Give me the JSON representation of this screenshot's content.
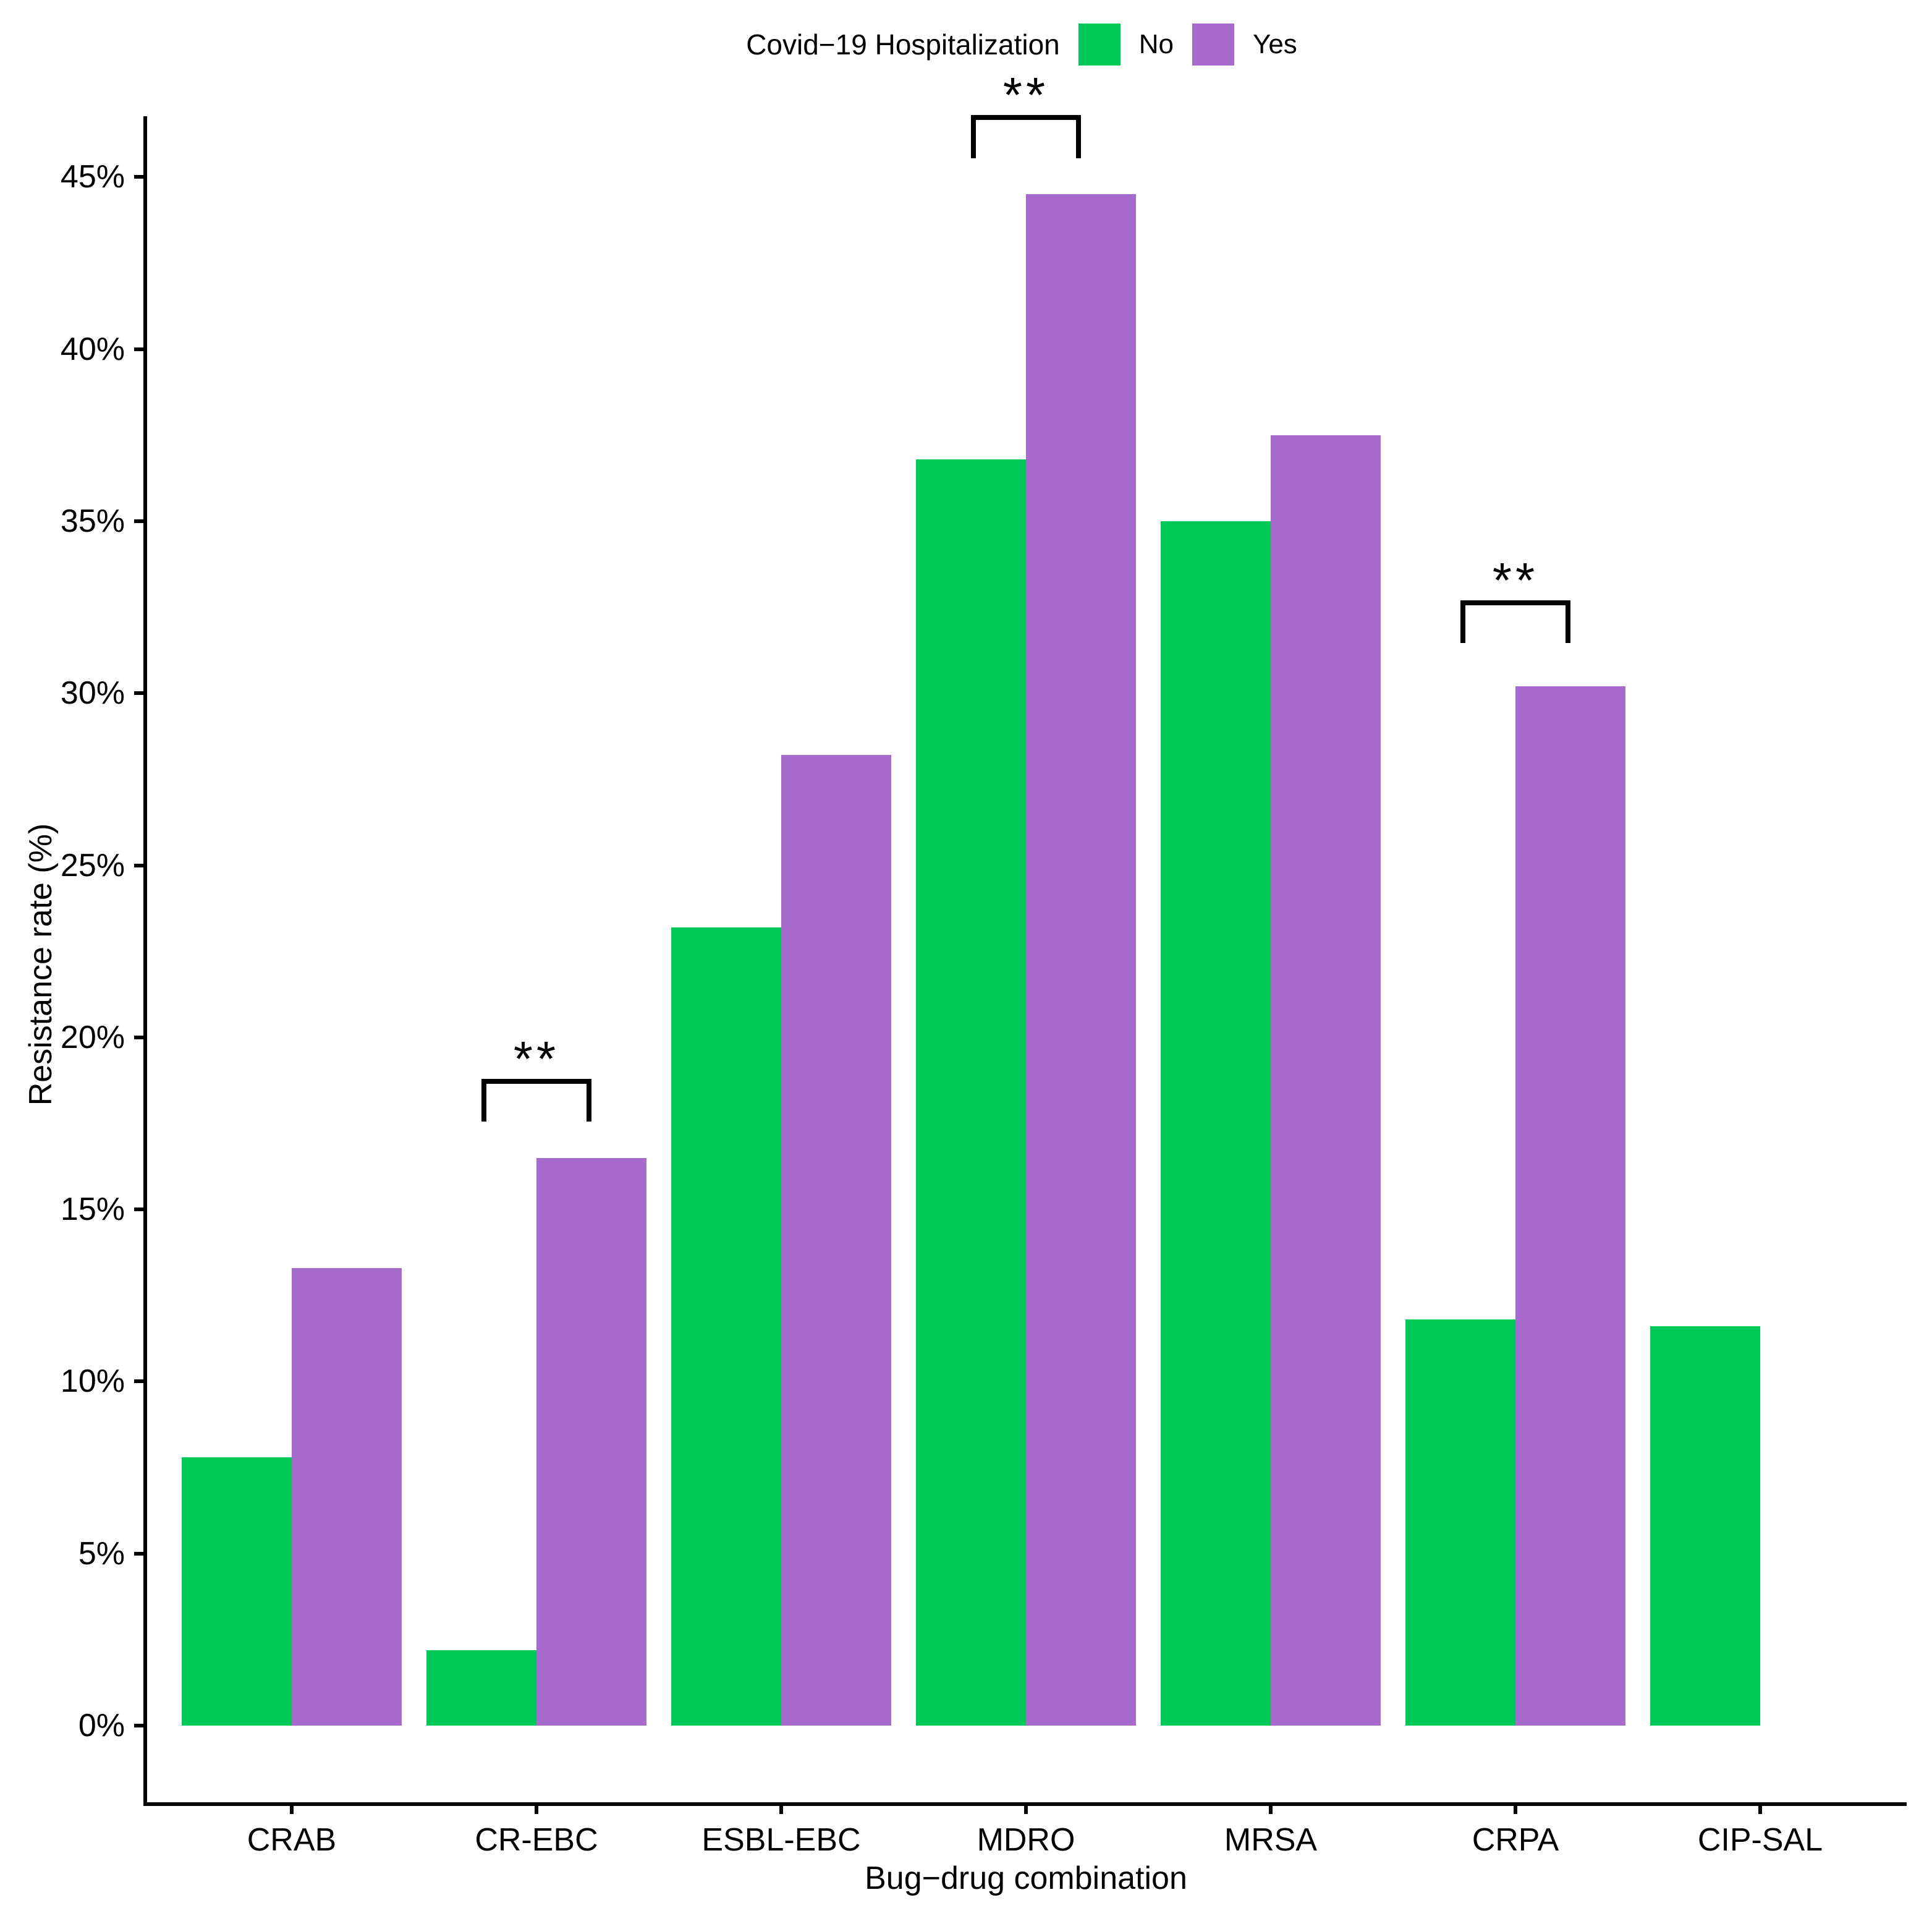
{
  "legend": {
    "title": "Covid−19 Hospitalization",
    "items": [
      {
        "label": "No",
        "color": "#00C95A"
      },
      {
        "label": "Yes",
        "color": "#A76BCE"
      }
    ]
  },
  "chart_data": {
    "type": "bar",
    "title": "",
    "xlabel": "Bug−drug combination",
    "ylabel": "Resistance rate (%)",
    "categories": [
      "CRAB",
      "CR-EBC",
      "ESBL-EBC",
      "MDRO",
      "MRSA",
      "CRPA",
      "CIP-SAL"
    ],
    "series": [
      {
        "name": "No",
        "color": "#00C95A",
        "values": [
          7.8,
          2.2,
          23.2,
          36.8,
          35.0,
          11.8,
          11.6
        ]
      },
      {
        "name": "Yes",
        "color": "#A76BCE",
        "values": [
          13.3,
          16.5,
          28.2,
          44.5,
          37.5,
          30.2,
          null
        ]
      }
    ],
    "y_axis": {
      "ylim": [
        0,
        45
      ],
      "tick_values": [
        0,
        5,
        10,
        15,
        20,
        25,
        30,
        35,
        40,
        45
      ],
      "tick_labels": [
        "0%",
        "5%",
        "10%",
        "15%",
        "20%",
        "25%",
        "30%",
        "35%",
        "40%",
        "45%"
      ]
    },
    "grid": false,
    "legend_position": "top-center",
    "annotations": [
      {
        "category": "CR-EBC",
        "label": "**",
        "line_y_pct": 18.8,
        "leg_drop_pct": 1.25
      },
      {
        "category": "MDRO",
        "label": "**",
        "line_y_pct": 46.8,
        "leg_drop_pct": 1.25
      },
      {
        "category": "CRPA",
        "label": "**",
        "line_y_pct": 32.7,
        "leg_drop_pct": 1.25
      }
    ],
    "colors": {
      "axis": "#000000",
      "text": "#000000",
      "background": "#FFFFFF"
    }
  }
}
